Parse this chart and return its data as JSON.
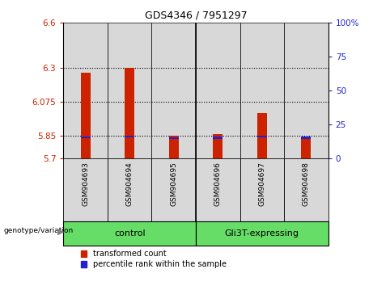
{
  "title": "GDS4346 / 7951297",
  "samples": [
    "GSM904693",
    "GSM904694",
    "GSM904695",
    "GSM904696",
    "GSM904697",
    "GSM904698"
  ],
  "red_values": [
    6.27,
    6.3,
    5.855,
    5.865,
    6.0,
    5.842
  ],
  "blue_values": [
    5.843,
    5.848,
    5.835,
    5.84,
    5.847,
    5.84
  ],
  "y_min": 5.7,
  "y_max": 6.6,
  "y_ticks": [
    5.7,
    5.85,
    6.075,
    6.3,
    6.6
  ],
  "y_tick_labels": [
    "5.7",
    "5.85",
    "6.075",
    "6.3",
    "6.6"
  ],
  "dotted_lines": [
    5.85,
    6.075,
    6.3
  ],
  "right_y_ticks": [
    0,
    25,
    50,
    75,
    100
  ],
  "right_y_tick_labels": [
    "0",
    "25",
    "50",
    "75",
    "100%"
  ],
  "red_color": "#CC2200",
  "blue_color": "#2222CC",
  "bg_color": "#D8D8D8",
  "green_color": "#66DD66",
  "legend_red": "transformed count",
  "legend_blue": "percentile rank within the sample",
  "group1_label": "control",
  "group2_label": "Gli3T-expressing"
}
